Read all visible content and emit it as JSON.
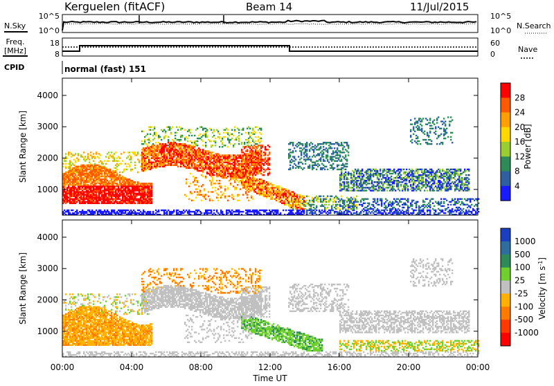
{
  "header": {
    "title": "Kerguelen (fitACF)",
    "beam": "Beam 14",
    "date": "11/Jul/2015"
  },
  "top_panels": {
    "nsky_label": "N.Sky",
    "nsky_ticks": [
      "10^5",
      "10^0"
    ],
    "nsearch_label": "N.Search",
    "nsearch_ticks": [
      "10^5",
      "10^0"
    ],
    "freq_label_1": "Freq.",
    "freq_label_2": "[MHz]",
    "freq_ticks": [
      "18",
      "8"
    ],
    "nave_label": "Nave",
    "nave_ticks": [
      "60",
      "0"
    ],
    "cpid_label": "CPID",
    "cpid_text": "normal (fast) 151"
  },
  "chart_data": [
    {
      "type": "heatmap",
      "panel": "power",
      "ylabel": "Slant Range [km]",
      "ylim": [
        180,
        4550
      ],
      "yticks": [
        "1000",
        "2000",
        "3000",
        "4000"
      ],
      "xlabel": "Time UT",
      "xticks": [
        "00:00",
        "04:00",
        "08:00",
        "12:00",
        "16:00",
        "20:00",
        "00:00"
      ],
      "colorbar_label": "Power [dB]",
      "colorbar_ticks": [
        "28",
        "24",
        "20",
        "16",
        "12",
        "8",
        "4"
      ],
      "colors": [
        "#ff0000",
        "#ff5a00",
        "#ffa000",
        "#ffd800",
        "#9acd32",
        "#2e8b57",
        "#2e5fa0",
        "#1a1aff"
      ]
    },
    {
      "type": "heatmap",
      "panel": "velocity",
      "ylabel": "Slant Range [km]",
      "ylim": [
        180,
        4550
      ],
      "yticks": [
        "1000",
        "2000",
        "3000",
        "4000"
      ],
      "xlabel": "Time UT",
      "xticks": [
        "00:00",
        "04:00",
        "08:00",
        "12:00",
        "16:00",
        "20:00",
        "00:00"
      ],
      "colorbar_label": "Velocity [m s",
      "colorbar_label_sup": "-1",
      "colorbar_label_end": "]",
      "colorbar_ticks": [
        "1000",
        "500",
        "100",
        "25",
        "-25",
        "-100",
        "-500",
        "-1000"
      ],
      "colors": [
        "#1a3fbf",
        "#2e6e9f",
        "#2e8b57",
        "#6fcf2f",
        "#c0c0c0",
        "#ffb000",
        "#ff7a00",
        "#ff3a00",
        "#ff0000"
      ]
    }
  ],
  "footer": {
    "xlabel": "Time UT"
  }
}
